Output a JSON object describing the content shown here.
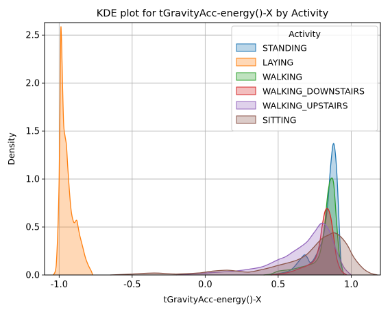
{
  "chart_data": {
    "type": "area",
    "title": "KDE plot for tGravityAcc-energy()-X by Activity",
    "xlabel": "tGravityAcc-energy()-X",
    "ylabel": "Density",
    "xlim": [
      -1.1,
      1.2
    ],
    "ylim": [
      0.0,
      2.63
    ],
    "xticks": [
      -1.0,
      -0.5,
      0.0,
      0.5,
      1.0
    ],
    "xtick_labels": [
      "-1.0",
      "-0.5",
      "0.0",
      "0.5",
      "1.0"
    ],
    "yticks": [
      0.0,
      0.5,
      1.0,
      1.5,
      2.0,
      2.5
    ],
    "ytick_labels": [
      "0.0",
      "0.5",
      "1.0",
      "1.5",
      "2.0",
      "2.5"
    ],
    "grid": true,
    "legend": {
      "title": "Activity",
      "placement": "top-right"
    },
    "series": [
      {
        "name": "STANDING",
        "color": "#1f77b4",
        "x": [
          0.45,
          0.55,
          0.6,
          0.65,
          0.68,
          0.7,
          0.72,
          0.75,
          0.8,
          0.82,
          0.84,
          0.86,
          0.88,
          0.9,
          0.92,
          0.93,
          0.95
        ],
        "y": [
          0,
          0.03,
          0.07,
          0.16,
          0.21,
          0.18,
          0.13,
          0.18,
          0.35,
          0.5,
          0.75,
          1.15,
          1.37,
          1.1,
          0.45,
          0.15,
          0
        ]
      },
      {
        "name": "LAYING",
        "color": "#ff7f0e",
        "x": [
          -1.04,
          -1.02,
          -1.0,
          -0.99,
          -0.985,
          -0.98,
          -0.97,
          -0.96,
          -0.95,
          -0.94,
          -0.92,
          -0.9,
          -0.88,
          -0.87,
          -0.86,
          -0.84,
          -0.82,
          -0.8,
          -0.78,
          -0.77
        ],
        "y": [
          0,
          0.1,
          1.0,
          2.45,
          2.5,
          2.2,
          1.6,
          1.45,
          1.35,
          1.1,
          0.7,
          0.55,
          0.57,
          0.5,
          0.42,
          0.3,
          0.18,
          0.1,
          0.04,
          0
        ]
      },
      {
        "name": "WALKING",
        "color": "#2ca02c",
        "x": [
          0.4,
          0.45,
          0.5,
          0.55,
          0.6,
          0.65,
          0.7,
          0.75,
          0.78,
          0.8,
          0.82,
          0.84,
          0.86,
          0.88,
          0.9,
          0.92,
          0.95
        ],
        "y": [
          0,
          0.01,
          0.04,
          0.05,
          0.06,
          0.08,
          0.1,
          0.13,
          0.2,
          0.33,
          0.55,
          0.85,
          1.0,
          0.95,
          0.55,
          0.2,
          0
        ]
      },
      {
        "name": "WALKING_DOWNSTAIRS",
        "color": "#d62728",
        "x": [
          0.45,
          0.55,
          0.6,
          0.65,
          0.7,
          0.75,
          0.78,
          0.8,
          0.82,
          0.84,
          0.86,
          0.88,
          0.9,
          0.93,
          0.97
        ],
        "y": [
          0,
          0.02,
          0.04,
          0.07,
          0.1,
          0.16,
          0.3,
          0.5,
          0.66,
          0.69,
          0.6,
          0.4,
          0.18,
          0.05,
          0
        ]
      },
      {
        "name": "WALKING_UPSTAIRS",
        "color": "#9467bd",
        "x": [
          -0.2,
          -0.1,
          0.0,
          0.1,
          0.2,
          0.3,
          0.4,
          0.5,
          0.55,
          0.6,
          0.65,
          0.7,
          0.75,
          0.8,
          0.85,
          0.9,
          0.95,
          1.0
        ],
        "y": [
          0,
          0.01,
          0.02,
          0.03,
          0.04,
          0.06,
          0.09,
          0.16,
          0.19,
          0.24,
          0.29,
          0.35,
          0.45,
          0.54,
          0.46,
          0.25,
          0.08,
          0
        ]
      },
      {
        "name": "SITTING",
        "color": "#8c564b",
        "x": [
          -0.65,
          -0.5,
          -0.35,
          -0.2,
          -0.05,
          0.05,
          0.15,
          0.22,
          0.3,
          0.4,
          0.5,
          0.6,
          0.65,
          0.7,
          0.75,
          0.8,
          0.85,
          0.88,
          0.92,
          0.97,
          1.02,
          1.08,
          1.13,
          1.18
        ],
        "y": [
          0,
          0.01,
          0.02,
          0.01,
          0.02,
          0.04,
          0.05,
          0.04,
          0.03,
          0.06,
          0.1,
          0.14,
          0.17,
          0.22,
          0.3,
          0.38,
          0.42,
          0.44,
          0.41,
          0.32,
          0.18,
          0.07,
          0.02,
          0
        ]
      }
    ]
  }
}
